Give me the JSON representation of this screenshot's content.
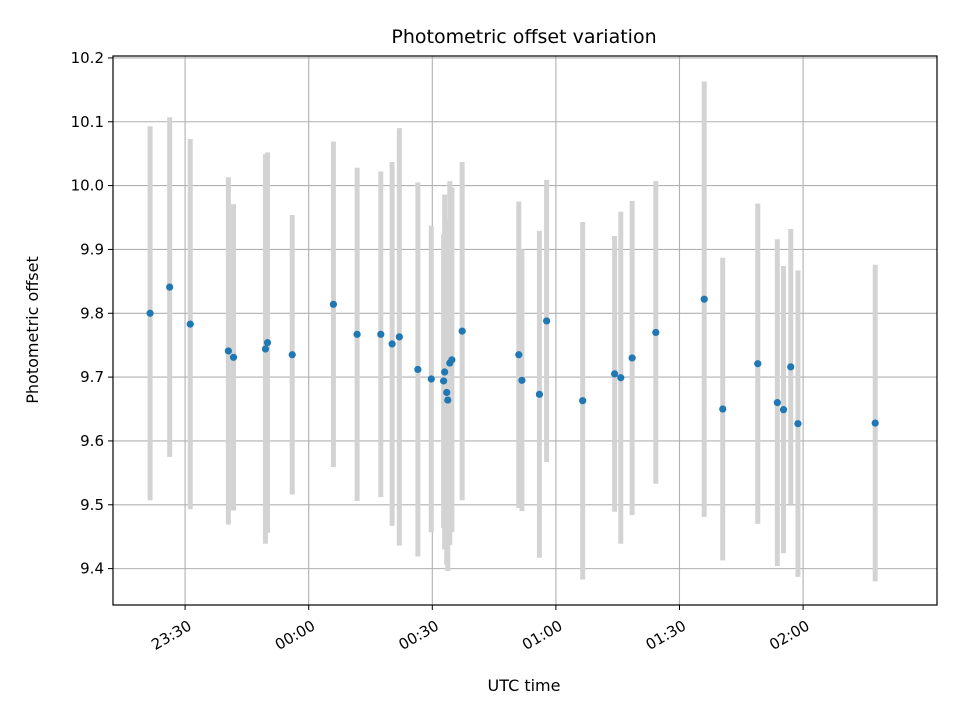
{
  "chart_data": {
    "type": "scatter",
    "title": "Photometric offset variation",
    "xlabel": "UTC time",
    "ylabel": "Photometric offset",
    "grid": true,
    "legend": "none",
    "xlim": [
      "23:12:30",
      "02:32:30"
    ],
    "ylim": [
      9.343,
      10.203
    ],
    "x_ticks": [
      "23:30",
      "00:00",
      "00:30",
      "01:00",
      "01:30",
      "02:00"
    ],
    "y_ticks": [
      "9.4",
      "9.5",
      "9.6",
      "9.7",
      "9.8",
      "9.9",
      "10.0",
      "10.1",
      "10.2"
    ],
    "colors": {
      "points": "#1f77b4",
      "errorbars": "#d3d3d3",
      "grid": "#b0b0b0"
    },
    "points": [
      {
        "x": "23:21:30",
        "y": 9.8,
        "err": 0.293
      },
      {
        "x": "23:26:15",
        "y": 9.841,
        "err": 0.266
      },
      {
        "x": "23:31:15",
        "y": 9.783,
        "err": 0.29
      },
      {
        "x": "23:40:30",
        "y": 9.741,
        "err": 0.272
      },
      {
        "x": "23:41:45",
        "y": 9.731,
        "err": 0.24
      },
      {
        "x": "23:49:30",
        "y": 9.744,
        "err": 0.305
      },
      {
        "x": "23:50:00",
        "y": 9.754,
        "err": 0.298
      },
      {
        "x": "23:56:00",
        "y": 9.735,
        "err": 0.219
      },
      {
        "x": "00:06:00",
        "y": 9.814,
        "err": 0.255
      },
      {
        "x": "00:11:45",
        "y": 9.767,
        "err": 0.261
      },
      {
        "x": "00:17:30",
        "y": 9.767,
        "err": 0.255
      },
      {
        "x": "00:20:15",
        "y": 9.752,
        "err": 0.285
      },
      {
        "x": "00:22:00",
        "y": 9.763,
        "err": 0.327
      },
      {
        "x": "00:26:30",
        "y": 9.712,
        "err": 0.293
      },
      {
        "x": "00:29:45",
        "y": 9.697,
        "err": 0.24
      },
      {
        "x": "00:32:45",
        "y": 9.694,
        "err": 0.23
      },
      {
        "x": "00:33:00",
        "y": 9.708,
        "err": 0.278
      },
      {
        "x": "00:33:30",
        "y": 9.676,
        "err": 0.27
      },
      {
        "x": "00:33:45",
        "y": 9.664,
        "err": 0.268
      },
      {
        "x": "00:34:15",
        "y": 9.722,
        "err": 0.285
      },
      {
        "x": "00:34:45",
        "y": 9.727,
        "err": 0.27
      },
      {
        "x": "00:37:15",
        "y": 9.772,
        "err": 0.265
      },
      {
        "x": "00:51:00",
        "y": 9.735,
        "err": 0.24
      },
      {
        "x": "00:51:45",
        "y": 9.695,
        "err": 0.205
      },
      {
        "x": "00:56:00",
        "y": 9.673,
        "err": 0.256
      },
      {
        "x": "00:57:45",
        "y": 9.788,
        "err": 0.221
      },
      {
        "x": "01:06:30",
        "y": 9.663,
        "err": 0.28
      },
      {
        "x": "01:14:15",
        "y": 9.705,
        "err": 0.216
      },
      {
        "x": "01:15:45",
        "y": 9.699,
        "err": 0.26
      },
      {
        "x": "01:18:30",
        "y": 9.73,
        "err": 0.246
      },
      {
        "x": "01:24:15",
        "y": 9.77,
        "err": 0.237
      },
      {
        "x": "01:36:00",
        "y": 9.822,
        "err": 0.341
      },
      {
        "x": "01:40:30",
        "y": 9.65,
        "err": 0.237
      },
      {
        "x": "01:49:00",
        "y": 9.721,
        "err": 0.251
      },
      {
        "x": "01:53:45",
        "y": 9.66,
        "err": 0.256
      },
      {
        "x": "01:55:15",
        "y": 9.649,
        "err": 0.225
      },
      {
        "x": "01:57:00",
        "y": 9.716,
        "err": 0.216
      },
      {
        "x": "01:58:45",
        "y": 9.627,
        "err": 0.24
      },
      {
        "x": "02:17:30",
        "y": 9.628,
        "err": 0.248
      }
    ]
  }
}
